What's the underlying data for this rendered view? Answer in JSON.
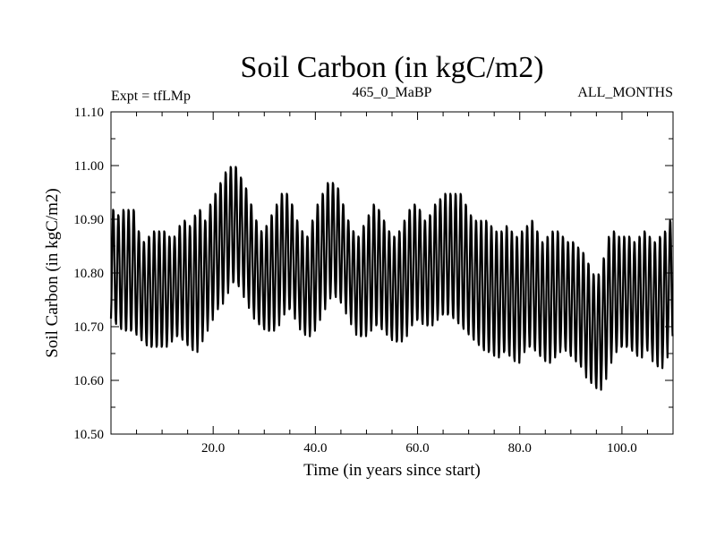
{
  "header": {
    "title": "Soil Carbon (in kgC/m2)",
    "experiment": "Expt = tfLMp",
    "run": "465_0_MaBP",
    "months": "ALL_MONTHS"
  },
  "chart_data": {
    "type": "line",
    "title": "Soil Carbon (in kgC/m2)",
    "xlabel": "Time (in years since start)",
    "ylabel": "Soil Carbon (in kgC/m2)",
    "xlim": [
      0,
      110
    ],
    "ylim": [
      10.5,
      11.1
    ],
    "x_ticks": [
      20,
      40,
      60,
      80,
      100
    ],
    "x_tick_labels": [
      "20.0",
      "40.0",
      "60.0",
      "80.0",
      "100.0"
    ],
    "y_ticks": [
      10.5,
      10.6,
      10.7,
      10.8,
      10.9,
      11.0,
      11.1
    ],
    "y_tick_labels": [
      "10.50",
      "10.60",
      "10.70",
      "10.80",
      "10.90",
      "11.00",
      "11.10"
    ],
    "grid": false,
    "series": [
      {
        "name": "Soil Carbon",
        "sampling": "12 values per year (monthly), annual seasonal cycle between yearly min and max",
        "yearly_max": [
          10.92,
          10.91,
          10.92,
          10.92,
          10.92,
          10.88,
          10.86,
          10.87,
          10.88,
          10.88,
          10.88,
          10.87,
          10.87,
          10.89,
          10.9,
          10.89,
          10.91,
          10.92,
          10.9,
          10.93,
          10.95,
          10.97,
          10.99,
          11.0,
          11.0,
          10.98,
          10.96,
          10.93,
          10.9,
          10.88,
          10.89,
          10.91,
          10.93,
          10.95,
          10.95,
          10.93,
          10.9,
          10.88,
          10.87,
          10.9,
          10.93,
          10.95,
          10.97,
          10.97,
          10.96,
          10.93,
          10.9,
          10.88,
          10.87,
          10.89,
          10.91,
          10.93,
          10.92,
          10.9,
          10.88,
          10.87,
          10.88,
          10.9,
          10.92,
          10.93,
          10.92,
          10.9,
          10.91,
          10.93,
          10.94,
          10.95,
          10.95,
          10.95,
          10.95,
          10.93,
          10.91,
          10.9,
          10.9,
          10.9,
          10.89,
          10.88,
          10.88,
          10.89,
          10.88,
          10.87,
          10.88,
          10.89,
          10.9,
          10.88,
          10.86,
          10.87,
          10.88,
          10.88,
          10.87,
          10.86,
          10.86,
          10.85,
          10.84,
          10.82,
          10.8,
          10.8,
          10.83,
          10.87,
          10.88,
          10.87,
          10.87,
          10.87,
          10.86,
          10.87,
          10.88,
          10.87,
          10.86,
          10.87,
          10.88,
          10.9
        ],
        "yearly_min": [
          10.71,
          10.7,
          10.69,
          10.69,
          10.69,
          10.68,
          10.67,
          10.66,
          10.66,
          10.66,
          10.66,
          10.67,
          10.68,
          10.68,
          10.67,
          10.66,
          10.65,
          10.67,
          10.69,
          10.71,
          10.73,
          10.74,
          10.76,
          10.78,
          10.78,
          10.77,
          10.75,
          10.73,
          10.71,
          10.7,
          10.69,
          10.69,
          10.7,
          10.72,
          10.73,
          10.73,
          10.71,
          10.69,
          10.68,
          10.69,
          10.71,
          10.73,
          10.75,
          10.76,
          10.75,
          10.74,
          10.72,
          10.7,
          10.68,
          10.68,
          10.69,
          10.7,
          10.7,
          10.69,
          10.68,
          10.67,
          10.67,
          10.68,
          10.7,
          10.71,
          10.71,
          10.7,
          10.7,
          10.71,
          10.72,
          10.72,
          10.72,
          10.71,
          10.7,
          10.69,
          10.68,
          10.67,
          10.66,
          10.65,
          10.65,
          10.64,
          10.65,
          10.65,
          10.64,
          10.63,
          10.65,
          10.66,
          10.66,
          10.65,
          10.64,
          10.63,
          10.64,
          10.65,
          10.66,
          10.65,
          10.64,
          10.63,
          10.62,
          10.6,
          10.59,
          10.58,
          10.6,
          10.63,
          10.65,
          10.66,
          10.66,
          10.66,
          10.65,
          10.64,
          10.66,
          10.65,
          10.63,
          10.62,
          10.64,
          10.68
        ]
      }
    ]
  }
}
